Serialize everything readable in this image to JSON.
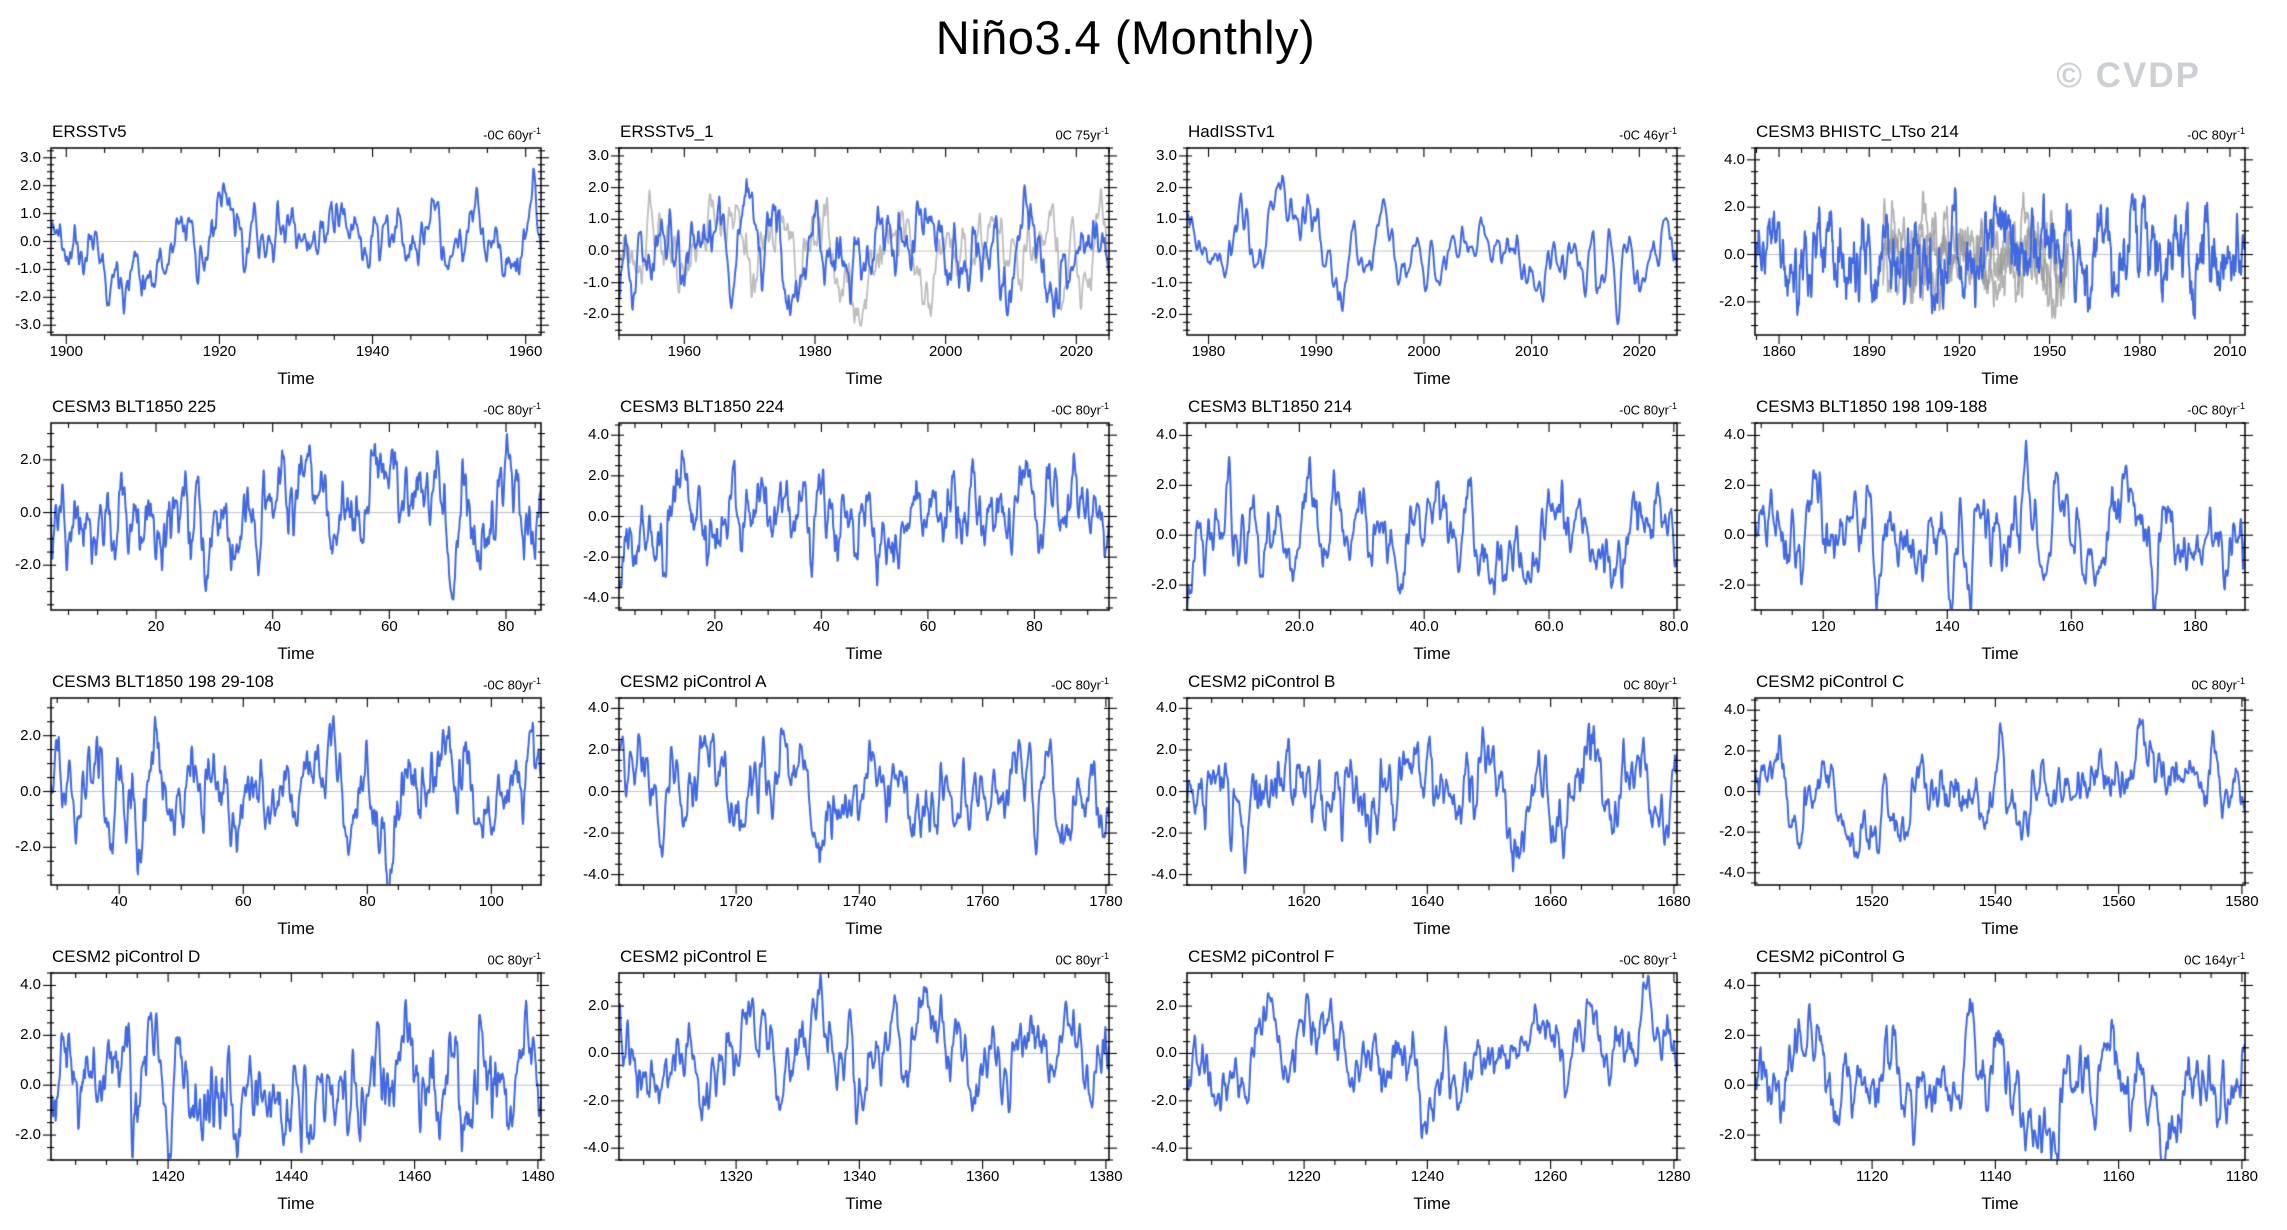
{
  "page": {
    "title": "Niño3.4 (Monthly)",
    "watermark": "© CVDP",
    "background": "#ffffff"
  },
  "colors": {
    "series_blue": "#4169E1",
    "overlay_gray": "#9a9a9a",
    "zero_line": "#c3c3c3",
    "frame": "#000000",
    "watermark": "#ccd0d5",
    "text": "#000000"
  },
  "chart_data": [
    {
      "type": "line",
      "title": "ERSSTv5",
      "trend": "-0C 60yr",
      "trend_sup": "-1",
      "xlabel": "Time",
      "xlim": [
        1898,
        1962
      ],
      "ylim": [
        -3.35,
        3.35
      ],
      "xticks": [
        {
          "label": "1900",
          "v": 1900
        },
        {
          "label": "1920",
          "v": 1920
        },
        {
          "label": "1940",
          "v": 1940
        },
        {
          "label": "1960",
          "v": 1960
        }
      ],
      "yticks": [
        {
          "label": "3.0",
          "v": 3
        },
        {
          "label": "2.0",
          "v": 2
        },
        {
          "label": "1.0",
          "v": 1
        },
        {
          "label": "0.0",
          "v": 0
        },
        {
          "label": "-1.0",
          "v": -1
        },
        {
          "label": "-2.0",
          "v": -2
        },
        {
          "label": "-3.0",
          "v": -3
        }
      ],
      "series": {
        "name": "nino34",
        "seed": 11,
        "amplitude": 0.85
      }
    },
    {
      "type": "line",
      "title": "ERSSTv5_1",
      "trend": "0C 75yr",
      "trend_sup": "-1",
      "xlabel": "Time",
      "xlim": [
        1950,
        2025
      ],
      "ylim": [
        -2.65,
        3.25
      ],
      "xticks": [
        {
          "label": "1960",
          "v": 1960
        },
        {
          "label": "1980",
          "v": 1980
        },
        {
          "label": "2000",
          "v": 2000
        },
        {
          "label": "2020",
          "v": 2020
        }
      ],
      "yticks": [
        {
          "label": "3.0",
          "v": 3
        },
        {
          "label": "2.0",
          "v": 2
        },
        {
          "label": "1.0",
          "v": 1
        },
        {
          "label": "0.0",
          "v": 0
        },
        {
          "label": "-1.0",
          "v": -1
        },
        {
          "label": "-2.0",
          "v": -2
        }
      ],
      "series": {
        "name": "nino34",
        "seed": 22,
        "amplitude": 0.85
      },
      "overlay": {
        "color": "#a8a8a8",
        "start_frac": 0.0,
        "end_frac": 1.0,
        "members": 1,
        "seed": 221,
        "amplitude": 0.85
      }
    },
    {
      "type": "line",
      "title": "HadISSTv1",
      "trend": "-0C 46yr",
      "trend_sup": "-1",
      "xlabel": "Time",
      "xlim": [
        1978,
        2023.5
      ],
      "ylim": [
        -2.65,
        3.25
      ],
      "xticks": [
        {
          "label": "1980",
          "v": 1980
        },
        {
          "label": "1990",
          "v": 1990
        },
        {
          "label": "2000",
          "v": 2000
        },
        {
          "label": "2010",
          "v": 2010
        },
        {
          "label": "2020",
          "v": 2020
        }
      ],
      "yticks": [
        {
          "label": "3.0",
          "v": 3
        },
        {
          "label": "2.0",
          "v": 2
        },
        {
          "label": "1.0",
          "v": 1
        },
        {
          "label": "0.0",
          "v": 0
        },
        {
          "label": "-1.0",
          "v": -1
        },
        {
          "label": "-2.0",
          "v": -2
        }
      ],
      "series": {
        "name": "nino34",
        "seed": 33,
        "amplitude": 0.8
      }
    },
    {
      "type": "line",
      "title": "CESM3 BHISTC_LTso 214",
      "trend": "-0C 80yr",
      "trend_sup": "-1",
      "xlabel": "Time",
      "xlim": [
        1852,
        2015
      ],
      "ylim": [
        -3.4,
        4.5
      ],
      "xticks": [
        {
          "label": "1860",
          "v": 1860
        },
        {
          "label": "1890",
          "v": 1890
        },
        {
          "label": "1920",
          "v": 1920
        },
        {
          "label": "1950",
          "v": 1950
        },
        {
          "label": "1980",
          "v": 1980
        },
        {
          "label": "2010",
          "v": 2010
        }
      ],
      "yticks": [
        {
          "label": "4.0",
          "v": 4
        },
        {
          "label": "2.0",
          "v": 2
        },
        {
          "label": "0.0",
          "v": 0
        },
        {
          "label": "-2.0",
          "v": -2
        }
      ],
      "series": {
        "name": "nino34",
        "seed": 44,
        "amplitude": 1.05
      },
      "overlay": {
        "color": "#9a9a9a",
        "start_frac": 0.26,
        "end_frac": 0.64,
        "members": 3,
        "seed": 441,
        "amplitude": 0.9
      }
    },
    {
      "type": "line",
      "title": "CESM3 BLT1850 225",
      "trend": "-0C 80yr",
      "trend_sup": "-1",
      "xlabel": "Time",
      "xlim": [
        2,
        86
      ],
      "ylim": [
        -3.7,
        3.4
      ],
      "xticks": [
        {
          "label": "20",
          "v": 20
        },
        {
          "label": "40",
          "v": 40
        },
        {
          "label": "60",
          "v": 60
        },
        {
          "label": "80",
          "v": 80
        }
      ],
      "yticks": [
        {
          "label": "2.0",
          "v": 2
        },
        {
          "label": "0.0",
          "v": 0
        },
        {
          "label": "-2.0",
          "v": -2
        }
      ],
      "series": {
        "name": "nino34",
        "seed": 55,
        "amplitude": 1.15
      }
    },
    {
      "type": "line",
      "title": "CESM3 BLT1850 224",
      "trend": "-0C 80yr",
      "trend_sup": "-1",
      "xlabel": "Time",
      "xlim": [
        2,
        94
      ],
      "ylim": [
        -4.6,
        4.6
      ],
      "xticks": [
        {
          "label": "20",
          "v": 20
        },
        {
          "label": "40",
          "v": 40
        },
        {
          "label": "60",
          "v": 60
        },
        {
          "label": "80",
          "v": 80
        }
      ],
      "yticks": [
        {
          "label": "4.0",
          "v": 4
        },
        {
          "label": "2.0",
          "v": 2
        },
        {
          "label": "0.0",
          "v": 0
        },
        {
          "label": "-2.0",
          "v": -2
        },
        {
          "label": "-4.0",
          "v": -4
        }
      ],
      "series": {
        "name": "nino34",
        "seed": 66,
        "amplitude": 1.25
      }
    },
    {
      "type": "line",
      "title": "CESM3 BLT1850 214",
      "trend": "-0C 80yr",
      "trend_sup": "-1",
      "xlabel": "Time",
      "xlim": [
        2,
        80.5
      ],
      "ylim": [
        -3.0,
        4.5
      ],
      "xticks": [
        {
          "label": "20.0",
          "v": 20
        },
        {
          "label": "40.0",
          "v": 40
        },
        {
          "label": "60.0",
          "v": 60
        },
        {
          "label": "80.0",
          "v": 80
        }
      ],
      "yticks": [
        {
          "label": "4.0",
          "v": 4
        },
        {
          "label": "2.0",
          "v": 2
        },
        {
          "label": "0.0",
          "v": 0
        },
        {
          "label": "-2.0",
          "v": -2
        }
      ],
      "series": {
        "name": "nino34",
        "seed": 77,
        "amplitude": 1.1
      }
    },
    {
      "type": "line",
      "title": "CESM3 BLT1850 198 109-188",
      "trend": "-0C 80yr",
      "trend_sup": "-1",
      "xlabel": "Time",
      "xlim": [
        109,
        188
      ],
      "ylim": [
        -3.0,
        4.5
      ],
      "xticks": [
        {
          "label": "120",
          "v": 120
        },
        {
          "label": "140",
          "v": 140
        },
        {
          "label": "160",
          "v": 160
        },
        {
          "label": "180",
          "v": 180
        }
      ],
      "yticks": [
        {
          "label": "4.0",
          "v": 4
        },
        {
          "label": "2.0",
          "v": 2
        },
        {
          "label": "0.0",
          "v": 0
        },
        {
          "label": "-2.0",
          "v": -2
        }
      ],
      "series": {
        "name": "nino34",
        "seed": 88,
        "amplitude": 1.15
      }
    },
    {
      "type": "line",
      "title": "CESM3 BLT1850 198 29-108",
      "trend": "-0C 80yr",
      "trend_sup": "-1",
      "xlabel": "Time",
      "xlim": [
        29,
        108
      ],
      "ylim": [
        -3.35,
        3.35
      ],
      "xticks": [
        {
          "label": "40",
          "v": 40
        },
        {
          "label": "60",
          "v": 60
        },
        {
          "label": "80",
          "v": 80
        },
        {
          "label": "100",
          "v": 100
        }
      ],
      "yticks": [
        {
          "label": "2.0",
          "v": 2
        },
        {
          "label": "0.0",
          "v": 0
        },
        {
          "label": "-2.0",
          "v": -2
        }
      ],
      "series": {
        "name": "nino34",
        "seed": 99,
        "amplitude": 1.1
      }
    },
    {
      "type": "line",
      "title": "CESM2 piControl A",
      "trend": "-0C 80yr",
      "trend_sup": "-1",
      "xlabel": "Time",
      "xlim": [
        1701,
        1780.5
      ],
      "ylim": [
        -4.5,
        4.5
      ],
      "xticks": [
        {
          "label": "1720",
          "v": 1720
        },
        {
          "label": "1740",
          "v": 1740
        },
        {
          "label": "1760",
          "v": 1760
        },
        {
          "label": "1780",
          "v": 1780
        }
      ],
      "yticks": [
        {
          "label": "4.0",
          "v": 4
        },
        {
          "label": "2.0",
          "v": 2
        },
        {
          "label": "0.0",
          "v": 0
        },
        {
          "label": "-2.0",
          "v": -2
        },
        {
          "label": "-4.0",
          "v": -4
        }
      ],
      "series": {
        "name": "nino34",
        "seed": 110,
        "amplitude": 1.35
      }
    },
    {
      "type": "line",
      "title": "CESM2 piControl B",
      "trend": "0C 80yr",
      "trend_sup": "-1",
      "xlabel": "Time",
      "xlim": [
        1601,
        1680.5
      ],
      "ylim": [
        -4.5,
        4.5
      ],
      "xticks": [
        {
          "label": "1620",
          "v": 1620
        },
        {
          "label": "1640",
          "v": 1640
        },
        {
          "label": "1660",
          "v": 1660
        },
        {
          "label": "1680",
          "v": 1680
        }
      ],
      "yticks": [
        {
          "label": "4.0",
          "v": 4
        },
        {
          "label": "2.0",
          "v": 2
        },
        {
          "label": "0.0",
          "v": 0
        },
        {
          "label": "-2.0",
          "v": -2
        },
        {
          "label": "-4.0",
          "v": -4
        }
      ],
      "series": {
        "name": "nino34",
        "seed": 121,
        "amplitude": 1.3
      }
    },
    {
      "type": "line",
      "title": "CESM2 piControl C",
      "trend": "0C 80yr",
      "trend_sup": "-1",
      "xlabel": "Time",
      "xlim": [
        1501,
        1580.5
      ],
      "ylim": [
        -4.6,
        4.6
      ],
      "xticks": [
        {
          "label": "1520",
          "v": 1520
        },
        {
          "label": "1540",
          "v": 1540
        },
        {
          "label": "1560",
          "v": 1560
        },
        {
          "label": "1580",
          "v": 1580
        }
      ],
      "yticks": [
        {
          "label": "4.0",
          "v": 4
        },
        {
          "label": "2.0",
          "v": 2
        },
        {
          "label": "0.0",
          "v": 0
        },
        {
          "label": "-2.0",
          "v": -2
        },
        {
          "label": "-4.0",
          "v": -4
        }
      ],
      "series": {
        "name": "nino34",
        "seed": 132,
        "amplitude": 1.3
      }
    },
    {
      "type": "line",
      "title": "CESM2 piControl D",
      "trend": "0C 80yr",
      "trend_sup": "-1",
      "xlabel": "Time",
      "xlim": [
        1401,
        1480.5
      ],
      "ylim": [
        -3.0,
        4.5
      ],
      "xticks": [
        {
          "label": "1420",
          "v": 1420
        },
        {
          "label": "1440",
          "v": 1440
        },
        {
          "label": "1460",
          "v": 1460
        },
        {
          "label": "1480",
          "v": 1480
        }
      ],
      "yticks": [
        {
          "label": "4.0",
          "v": 4
        },
        {
          "label": "2.0",
          "v": 2
        },
        {
          "label": "0.0",
          "v": 0
        },
        {
          "label": "-2.0",
          "v": -2
        }
      ],
      "series": {
        "name": "nino34",
        "seed": 143,
        "amplitude": 1.25
      }
    },
    {
      "type": "line",
      "title": "CESM2 piControl E",
      "trend": "0C 80yr",
      "trend_sup": "-1",
      "xlabel": "Time",
      "xlim": [
        1301,
        1380.5
      ],
      "ylim": [
        -4.5,
        3.4
      ],
      "xticks": [
        {
          "label": "1320",
          "v": 1320
        },
        {
          "label": "1340",
          "v": 1340
        },
        {
          "label": "1360",
          "v": 1360
        },
        {
          "label": "1380",
          "v": 1380
        }
      ],
      "yticks": [
        {
          "label": "2.0",
          "v": 2
        },
        {
          "label": "0.0",
          "v": 0
        },
        {
          "label": "-2.0",
          "v": -2
        },
        {
          "label": "-4.0",
          "v": -4
        }
      ],
      "series": {
        "name": "nino34",
        "seed": 154,
        "amplitude": 1.2
      }
    },
    {
      "type": "line",
      "title": "CESM2 piControl F",
      "trend": "-0C 80yr",
      "trend_sup": "-1",
      "xlabel": "Time",
      "xlim": [
        1201,
        1280.5
      ],
      "ylim": [
        -4.5,
        3.4
      ],
      "xticks": [
        {
          "label": "1220",
          "v": 1220
        },
        {
          "label": "1240",
          "v": 1240
        },
        {
          "label": "1260",
          "v": 1260
        },
        {
          "label": "1280",
          "v": 1280
        }
      ],
      "yticks": [
        {
          "label": "2.0",
          "v": 2
        },
        {
          "label": "0.0",
          "v": 0
        },
        {
          "label": "-2.0",
          "v": -2
        },
        {
          "label": "-4.0",
          "v": -4
        }
      ],
      "series": {
        "name": "nino34",
        "seed": 165,
        "amplitude": 1.2
      }
    },
    {
      "type": "line",
      "title": "CESM2 piControl G",
      "trend": "0C 164yr",
      "trend_sup": "-1",
      "xlabel": "Time",
      "xlim": [
        1101,
        1180.5
      ],
      "ylim": [
        -3.0,
        4.5
      ],
      "xticks": [
        {
          "label": "1120",
          "v": 1120
        },
        {
          "label": "1140",
          "v": 1140
        },
        {
          "label": "1160",
          "v": 1160
        },
        {
          "label": "1180",
          "v": 1180
        }
      ],
      "yticks": [
        {
          "label": "4.0",
          "v": 4
        },
        {
          "label": "2.0",
          "v": 2
        },
        {
          "label": "0.0",
          "v": 0
        },
        {
          "label": "-2.0",
          "v": -2
        }
      ],
      "series": {
        "name": "nino34",
        "seed": 176,
        "amplitude": 1.25
      }
    }
  ]
}
